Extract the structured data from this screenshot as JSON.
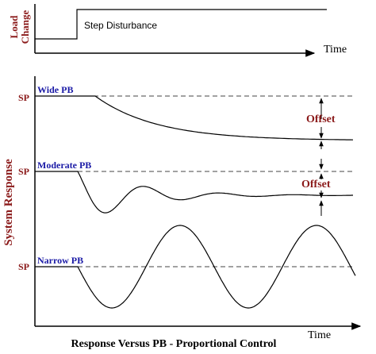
{
  "colors": {
    "label_dark_red": "#8b1a1a",
    "label_blue": "#1a1aa6",
    "line": "#000000",
    "dash": "#444444"
  },
  "load_panel": {
    "ylabel_line1": "Load",
    "ylabel_line2": "Change",
    "step_label": "Step Disturbance",
    "xlabel": "Time"
  },
  "response_panel": {
    "ylabel": "System Response",
    "xlabel": "Time",
    "caption": "Response Versus PB - Proportional Control",
    "setpoint_label": "SP",
    "offset_label": "Offset",
    "curves": [
      {
        "name": "Wide PB"
      },
      {
        "name": "Moderate PB"
      },
      {
        "name": "Narrow PB"
      }
    ]
  }
}
